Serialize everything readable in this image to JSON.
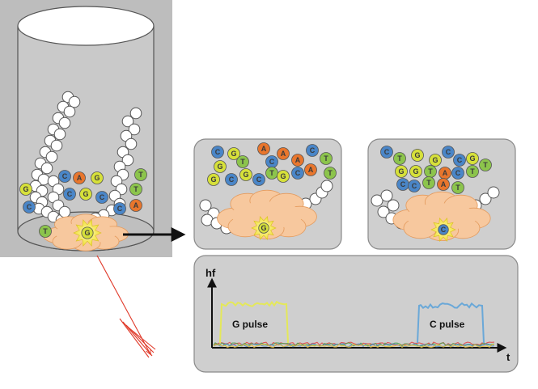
{
  "colors": {
    "A": "#e8762d",
    "C": "#4a86c8",
    "G": "#d6e03a",
    "T": "#8cc44c",
    "panel_fill": "#cfcfcf",
    "panel_stroke": "#8a8a8a",
    "polymerase": "#f7c89e",
    "arrow_red": "#e03a2a",
    "g_pulse": "#e4e85a",
    "c_pulse": "#6aa8d8"
  },
  "well": {
    "polymerase_label": "G",
    "free_nucleotides": [
      "C",
      "A",
      "G",
      "T",
      "G",
      "C",
      "G",
      "C",
      "T",
      "C",
      "A",
      "C",
      "T"
    ]
  },
  "panel_g": {
    "nucleotides": [
      "C",
      "G",
      "A",
      "A",
      "C",
      "G",
      "T",
      "C",
      "A",
      "T",
      "C",
      "G",
      "C",
      "T",
      "G",
      "C",
      "A",
      "G",
      "T"
    ],
    "active_label": "G"
  },
  "panel_c": {
    "nucleotides": [
      "C",
      "T",
      "G",
      "G",
      "C",
      "C",
      "G",
      "T",
      "G",
      "G",
      "T",
      "A",
      "C",
      "T",
      "C",
      "C",
      "T",
      "A",
      "T"
    ],
    "active_label": "C"
  },
  "plot": {
    "ylabel": "hf",
    "xlabel": "t",
    "pulses": [
      {
        "name": "G pulse",
        "label": "G pulse"
      },
      {
        "name": "C pulse",
        "label": "C pulse"
      }
    ]
  }
}
